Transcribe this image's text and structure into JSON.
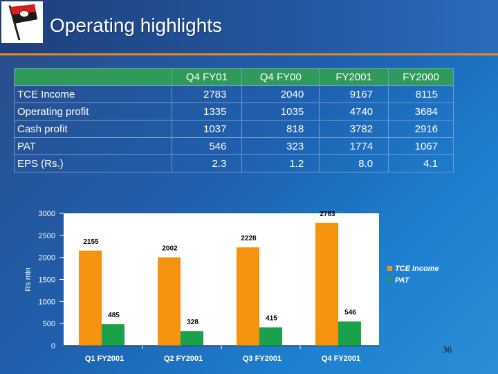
{
  "slide": {
    "title": "Operating highlights",
    "page_number": "36"
  },
  "colors": {
    "header_green": "#2f9a5a",
    "accent_orange": "#e58a1f",
    "tce_bar": "#f5930f",
    "pat_bar": "#1aa24a",
    "plot_bg": "#ffffff"
  },
  "table": {
    "columns": [
      "Q4 FY01",
      "Q4 FY00",
      "FY2001",
      "FY2000"
    ],
    "rows": [
      {
        "label": "TCE Income",
        "values": [
          "2783",
          "2040",
          "9167",
          "8115"
        ]
      },
      {
        "label": "Operating profit",
        "values": [
          "1335",
          "1035",
          "4740",
          "3684"
        ]
      },
      {
        "label": "Cash profit",
        "values": [
          "1037",
          "818",
          "3782",
          "2916"
        ]
      },
      {
        "label": "PAT",
        "values": [
          "546",
          "323",
          "1774",
          "1067"
        ]
      },
      {
        "label": "EPS (Rs.)",
        "values": [
          "2.3",
          "1.2",
          "8.0",
          "4.1"
        ]
      }
    ]
  },
  "chart_data": {
    "type": "bar",
    "categories": [
      "Q1 FY2001",
      "Q2 FY2001",
      "Q3 FY2001",
      "Q4 FY2001"
    ],
    "series": [
      {
        "name": "TCE Income",
        "values": [
          2155,
          2002,
          2228,
          2783
        ],
        "labels": [
          "2155",
          "2002",
          "2228",
          "2783"
        ]
      },
      {
        "name": "PAT",
        "values": [
          485,
          328,
          415,
          546
        ],
        "labels": [
          "485",
          "328",
          "415",
          "546"
        ]
      }
    ],
    "ylabel": "Rs mln",
    "ylim": [
      0,
      3000
    ],
    "yticks": [
      0,
      500,
      1000,
      1500,
      2000,
      2500,
      3000
    ],
    "ytick_labels": [
      "0",
      "500",
      "1000",
      "1500",
      "2000",
      "2500",
      "3000"
    ],
    "legend_position": "right",
    "grid": false
  }
}
